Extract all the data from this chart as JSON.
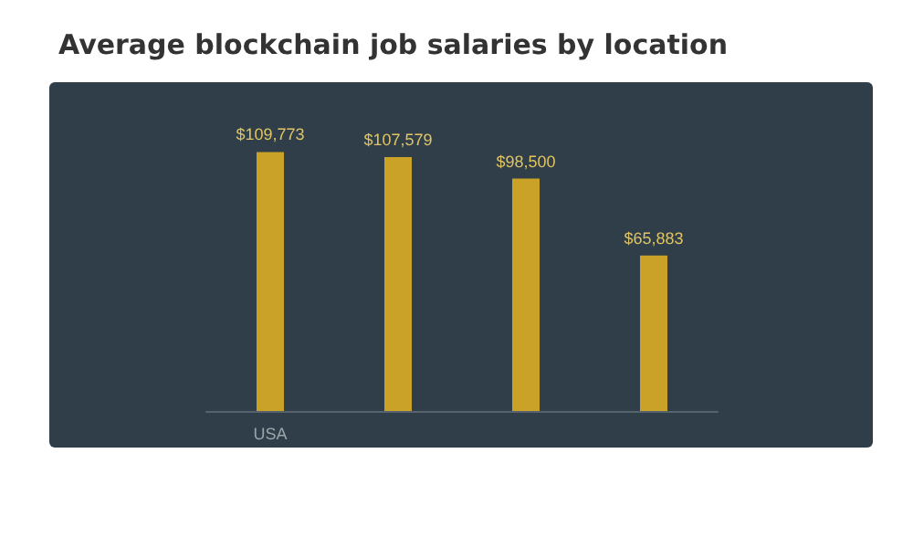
{
  "chart_data": {
    "type": "bar",
    "title": "Average blockchain job salaries by location",
    "categories": [
      "USA",
      null,
      null,
      null
    ],
    "values": [
      109773,
      107579,
      98500,
      65883
    ],
    "value_labels": [
      "$109,773",
      "$107,579",
      "$98,500",
      "$65,883"
    ],
    "color": "#c9a227"
  }
}
